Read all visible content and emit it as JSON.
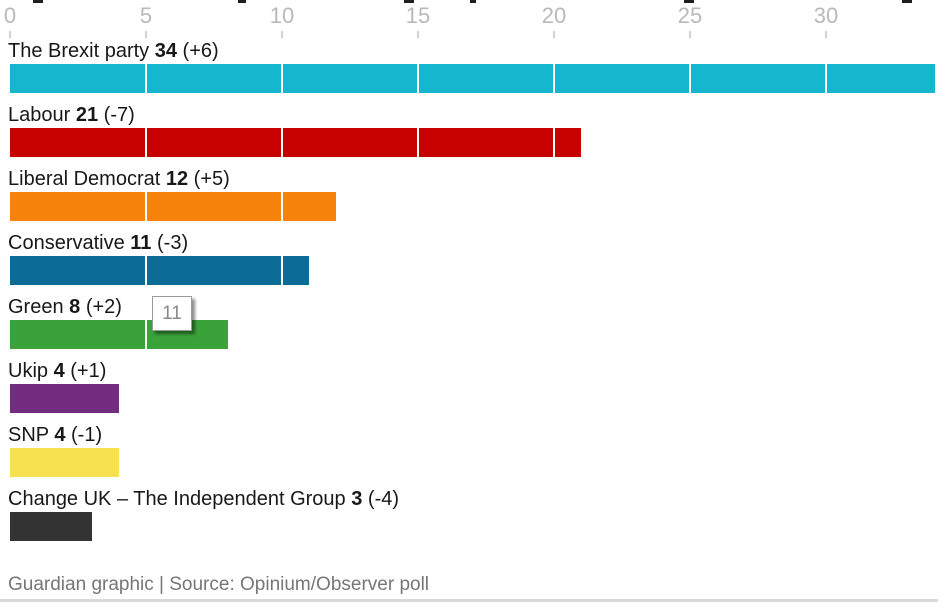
{
  "axis": {
    "ticks": [
      0,
      5,
      10,
      15,
      20,
      25,
      30
    ]
  },
  "chart_data": {
    "type": "bar",
    "orientation": "horizontal",
    "title": "",
    "xlabel": "",
    "ylabel": "",
    "xlim": [
      0,
      34.5
    ],
    "grid": "white vertical gridlines over bars at ticks of 5",
    "legend": "none",
    "categories": [
      "The Brexit party",
      "Labour",
      "Liberal Democrat",
      "Conservative",
      "Green",
      "Ukip",
      "SNP",
      "Change UK – The Independent Group"
    ],
    "values": [
      34,
      21,
      12,
      11,
      8,
      4,
      4,
      3
    ],
    "changes": [
      6,
      -7,
      5,
      -3,
      2,
      1,
      -1,
      -4
    ],
    "changes_display": [
      "(+6)",
      "(-7)",
      "(+5)",
      "(-3)",
      "(+2)",
      "(+1)",
      "(-1)",
      "(-4)"
    ],
    "colors": [
      "#14b7cd",
      "#c70000",
      "#f7820c",
      "#0c6c95",
      "#39a339",
      "#722d80",
      "#f7e14e",
      "#333333"
    ]
  },
  "tooltip": {
    "value": "11"
  },
  "footer": {
    "credit": "Guardian graphic | Source: Opinium/Observer poll"
  }
}
